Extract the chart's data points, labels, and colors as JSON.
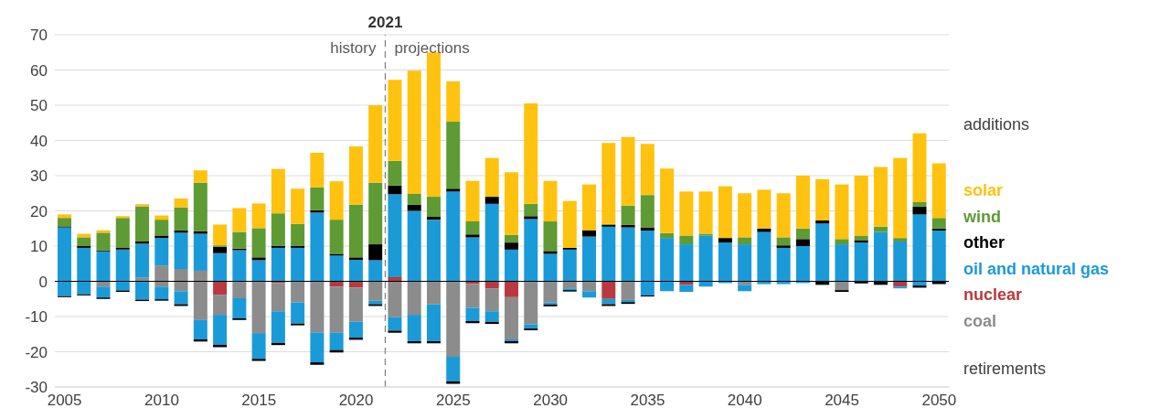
{
  "chart_data": {
    "type": "bar",
    "stacked": true,
    "x": [
      2005,
      2006,
      2007,
      2008,
      2009,
      2010,
      2011,
      2012,
      2013,
      2014,
      2015,
      2016,
      2017,
      2018,
      2019,
      2020,
      2021,
      2022,
      2023,
      2024,
      2025,
      2026,
      2027,
      2028,
      2029,
      2030,
      2031,
      2032,
      2033,
      2034,
      2035,
      2036,
      2037,
      2038,
      2039,
      2040,
      2041,
      2042,
      2043,
      2044,
      2045,
      2046,
      2047,
      2048,
      2049,
      2050
    ],
    "xlim": [
      2004.5,
      2050.5
    ],
    "xticks": [
      2005,
      2010,
      2015,
      2020,
      2025,
      2030,
      2035,
      2040,
      2045,
      2050
    ],
    "ylim": [
      -30,
      70
    ],
    "yticks": [
      -30,
      -20,
      -10,
      0,
      10,
      20,
      30,
      40,
      50,
      60,
      70
    ],
    "grid": "y",
    "legend": "right",
    "series": [
      {
        "name": "coal",
        "color": "#8c8c8c",
        "values": [
          0,
          0,
          0,
          0,
          1,
          4.5,
          3.5,
          3,
          0,
          0,
          0,
          0,
          0,
          0,
          0,
          0,
          0,
          0,
          0,
          0,
          0,
          0,
          0,
          0,
          0,
          0,
          0,
          0,
          0,
          0,
          0,
          0,
          0,
          0,
          0,
          0,
          0,
          0,
          0,
          0,
          0,
          0,
          0,
          0,
          0,
          0
        ]
      },
      {
        "name": "nuclear",
        "color": "#b9393e",
        "values": [
          0,
          0,
          0,
          0,
          0,
          0,
          0,
          0,
          0,
          0,
          0,
          0,
          0,
          0,
          0,
          0,
          0,
          1.2,
          0,
          0,
          0,
          0,
          0,
          0,
          0,
          0,
          0,
          0,
          0,
          0,
          0,
          0,
          0,
          0,
          0,
          0,
          0,
          0,
          0,
          0,
          0,
          0,
          0,
          0,
          0,
          0
        ]
      },
      {
        "name": "oil and natural gas",
        "color": "#1b9ad8",
        "values": [
          15.3,
          9.5,
          8.5,
          9,
          9.7,
          7.8,
          10.3,
          10.5,
          8,
          8.8,
          6,
          9.5,
          9.5,
          19.5,
          7.3,
          6.1,
          6,
          23.5,
          20,
          17.5,
          25.5,
          12.5,
          22,
          9,
          17.7,
          7.8,
          9,
          12.7,
          15.5,
          15.3,
          14.4,
          12.3,
          10.5,
          13,
          11,
          10.5,
          14,
          9.5,
          10,
          16.4,
          10.5,
          11,
          14,
          11.3,
          19,
          14.4
        ]
      },
      {
        "name": "other",
        "color": "#000000",
        "values": [
          0.3,
          0.5,
          0.3,
          0.5,
          0.6,
          0.7,
          0.7,
          0.7,
          1.8,
          0.5,
          0.8,
          0.6,
          0.6,
          0.7,
          0.5,
          0.7,
          4.5,
          2.5,
          1.8,
          0.8,
          0.8,
          0.8,
          2,
          2,
          0.8,
          0.8,
          0.5,
          1.8,
          0.5,
          0.7,
          0.9,
          0,
          0,
          0,
          1.3,
          0,
          1,
          0.7,
          2,
          0.9,
          0,
          0.7,
          0,
          0,
          2.2,
          0.6
        ]
      },
      {
        "name": "wind",
        "color": "#5e9b34",
        "values": [
          2.4,
          2.5,
          5,
          8.5,
          10,
          4.5,
          6.5,
          13.8,
          0.4,
          4.7,
          8.3,
          9.2,
          6.2,
          6.5,
          9.7,
          15,
          17.5,
          7,
          3,
          5.7,
          19,
          3.7,
          0,
          2.2,
          3.5,
          8.4,
          0,
          0,
          0.3,
          5.5,
          9.2,
          1.4,
          2.5,
          0.5,
          0,
          2,
          0,
          2.3,
          3,
          0,
          1.5,
          1.3,
          1.5,
          1,
          1.3,
          3
        ]
      },
      {
        "name": "solar",
        "color": "#ffc20e",
        "values": [
          1,
          1,
          0.7,
          0.5,
          0.6,
          1.2,
          2.5,
          3.5,
          5.9,
          6.8,
          7,
          12.6,
          10,
          9.8,
          10.9,
          16.5,
          22,
          23,
          35,
          41,
          11.5,
          11.5,
          11,
          17.8,
          28.5,
          11.5,
          13.3,
          13,
          23,
          19.5,
          14.5,
          18.3,
          12.5,
          12,
          14.7,
          12.5,
          11,
          12.5,
          15,
          11.7,
          15.5,
          17,
          17,
          22.7,
          19.5,
          15.5
        ]
      },
      {
        "color": "#b9393e",
        "values": [
          0,
          0,
          0,
          0,
          0,
          0,
          0,
          0,
          -3.8,
          0,
          0,
          -0.5,
          0,
          0,
          -1.5,
          -1.8,
          0,
          0,
          0,
          0,
          0,
          -0.8,
          -2,
          -4.5,
          0,
          0,
          0,
          0,
          -5,
          0,
          0,
          0,
          -1,
          0,
          0,
          0,
          0,
          0,
          0,
          0,
          0,
          0,
          0,
          -1.5,
          0,
          0
        ]
      },
      {
        "color": "#8c8c8c",
        "values": [
          0,
          0,
          -1.5,
          0,
          0,
          -1.5,
          -2.8,
          -11,
          -5.7,
          -4.8,
          -14.7,
          -8,
          -6,
          -14.5,
          -13,
          -9.7,
          -5.5,
          -10.2,
          -9.5,
          -6.5,
          -21.4,
          -6.7,
          -6.5,
          -12,
          -12.2,
          -6,
          -2,
          -2.8,
          0,
          -5.3,
          0,
          0,
          0,
          0,
          0,
          -1,
          0,
          0,
          0,
          0,
          -2.5,
          0,
          0,
          0,
          0,
          0
        ]
      },
      {
        "color": "#1b9ad8",
        "values": [
          -4.2,
          -3.7,
          -3.1,
          -2.6,
          -5.2,
          -3.6,
          -3.7,
          -5.5,
          -8.5,
          -5.7,
          -7.3,
          -9,
          -6,
          -8.5,
          -5,
          -4.5,
          -1,
          -3.8,
          -7.5,
          -10.5,
          -7,
          -3.8,
          -3,
          -0.5,
          -1.2,
          -0.6,
          -0.5,
          -1.8,
          -1.5,
          -0.6,
          -4,
          -2.8,
          -2,
          -1.5,
          -0.5,
          -1.8,
          -0.8,
          -0.8,
          -0.5,
          0,
          0,
          0,
          0,
          -0.5,
          -1.2,
          0
        ]
      },
      {
        "color": "#000000",
        "values": [
          -0.3,
          -0.3,
          -0.4,
          -0.4,
          -0.4,
          -0.4,
          -0.5,
          -0.6,
          -0.7,
          -0.5,
          -0.6,
          -0.6,
          -0.5,
          -0.7,
          -0.7,
          -0.6,
          -0.5,
          -0.6,
          -0.6,
          -0.6,
          -0.7,
          -0.6,
          -0.6,
          -0.6,
          -0.5,
          -0.5,
          -0.4,
          0,
          -0.5,
          -0.5,
          -0.3,
          0,
          0,
          0,
          0,
          0,
          0,
          0,
          0,
          -1,
          -0.5,
          -0.6,
          -1,
          0,
          -0.6,
          -0.8
        ]
      }
    ],
    "ref_lines": [
      {
        "axis": "y",
        "value": 0,
        "color": "#000000",
        "line_style": "solid"
      },
      {
        "axis": "x",
        "value": 2021.5,
        "label": "2021",
        "color": "#7f7f7f",
        "line_style": "dashed"
      }
    ],
    "annotations": [
      "history",
      "projections",
      "additions",
      "retirements"
    ]
  }
}
